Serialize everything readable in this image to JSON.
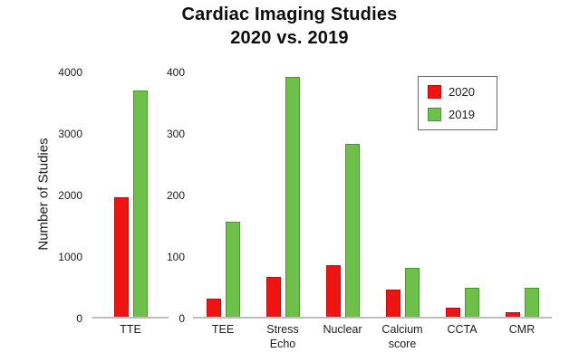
{
  "chart_data": {
    "type": "bar",
    "title": "Cardiac Imaging Studies",
    "subtitle": "2020 vs. 2019",
    "ylabel": "Number of Studies",
    "grid": false,
    "legend_position": "top-right",
    "legend": [
      {
        "label": "2020",
        "color": "#ee1411",
        "edge": "#b80d0b"
      },
      {
        "label": "2019",
        "color": "#6ec04a",
        "edge": "#49962c"
      }
    ],
    "panels": [
      {
        "name": "left",
        "categories": [
          "TTE"
        ],
        "ylim": [
          0,
          4000
        ],
        "yticks": [
          0,
          1000,
          2000,
          3000,
          4000
        ],
        "series": [
          {
            "name": "2020",
            "values": [
              1950
            ]
          },
          {
            "name": "2019",
            "values": [
              3700
            ]
          }
        ]
      },
      {
        "name": "right",
        "categories": [
          "TEE",
          "Stress Echo",
          "Nuclear",
          "Calcium score",
          "CCTA",
          "CMR"
        ],
        "ylim": [
          0,
          400
        ],
        "yticks": [
          0,
          100,
          200,
          300,
          400
        ],
        "series": [
          {
            "name": "2020",
            "values": [
              30,
              65,
              85,
              45,
              15,
              8
            ]
          },
          {
            "name": "2019",
            "values": [
              155,
              393,
              283,
              80,
              47,
              48
            ]
          }
        ]
      }
    ]
  }
}
